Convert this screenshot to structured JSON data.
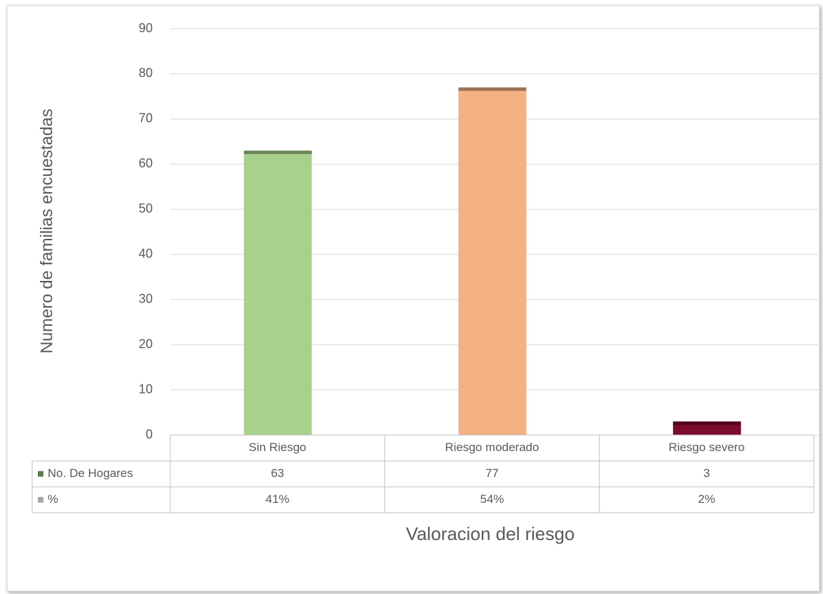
{
  "chart_data": {
    "type": "bar",
    "x_label": "Valoracion del riesgo",
    "y_label": "Numero de familias encuestadas",
    "categories": [
      "Sin Riesgo",
      "Riesgo moderado",
      "Riesgo severo"
    ],
    "colors": [
      "#a9d18e",
      "#f4b183",
      "#7b0c2c"
    ],
    "series": [
      {
        "name": "No. De Hogares",
        "color": "#5e7d4c",
        "values": [
          63,
          77,
          3
        ]
      },
      {
        "name": "%",
        "color": "#a5a5a5",
        "values": [
          41,
          54,
          2
        ],
        "value_labels": [
          "41%",
          "54%",
          "2%"
        ]
      }
    ],
    "ylim": [
      0,
      90
    ],
    "yticks": [
      0,
      10,
      20,
      30,
      40,
      50,
      60,
      70,
      80,
      90
    ],
    "grid": true
  }
}
